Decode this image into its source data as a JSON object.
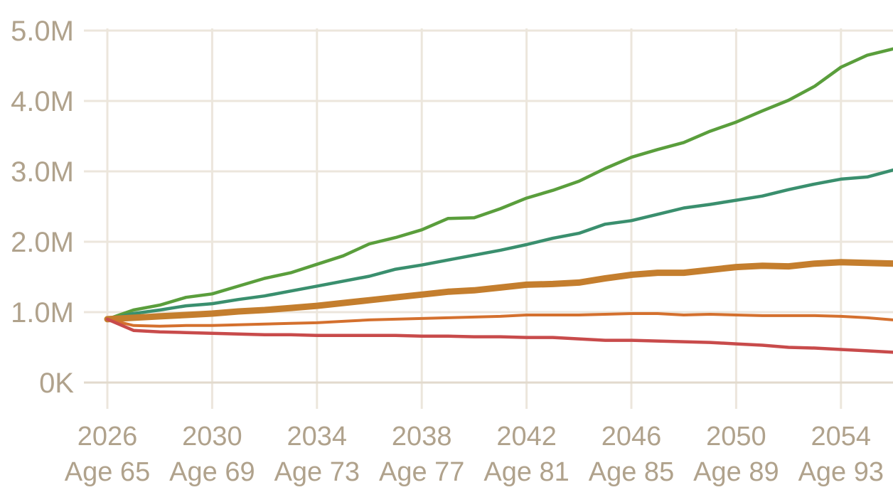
{
  "chart_data": {
    "type": "line",
    "title": "",
    "xlabel": "",
    "ylabel": "",
    "x": [
      2026,
      2027,
      2028,
      2029,
      2030,
      2031,
      2032,
      2033,
      2034,
      2035,
      2036,
      2037,
      2038,
      2039,
      2040,
      2041,
      2042,
      2043,
      2044,
      2045,
      2046,
      2047,
      2048,
      2049,
      2050,
      2051,
      2052,
      2053,
      2054,
      2055,
      2056
    ],
    "xlim": [
      2026,
      2056
    ],
    "ylim": [
      0,
      5000000
    ],
    "grid": true,
    "legend": "none",
    "y_ticks": [
      {
        "value": 0,
        "label": "0K"
      },
      {
        "value": 1000000,
        "label": "1.0M"
      },
      {
        "value": 2000000,
        "label": "2.0M"
      },
      {
        "value": 3000000,
        "label": "3.0M"
      },
      {
        "value": 4000000,
        "label": "4.0M"
      },
      {
        "value": 5000000,
        "label": "5.0M"
      }
    ],
    "x_ticks": [
      {
        "value": 2026,
        "year": "2026",
        "age": "Age 65"
      },
      {
        "value": 2030,
        "year": "2030",
        "age": "Age 69"
      },
      {
        "value": 2034,
        "year": "2034",
        "age": "Age 73"
      },
      {
        "value": 2038,
        "year": "2038",
        "age": "Age 77"
      },
      {
        "value": 2042,
        "year": "2042",
        "age": "Age 81"
      },
      {
        "value": 2046,
        "year": "2046",
        "age": "Age 85"
      },
      {
        "value": 2050,
        "year": "2050",
        "age": "Age 89"
      },
      {
        "value": 2054,
        "year": "2054",
        "age": "Age 93"
      }
    ],
    "series": [
      {
        "color": "#5a9e3c",
        "width": 4.5,
        "values": [
          900000,
          1030000,
          1100000,
          1210000,
          1260000,
          1370000,
          1480000,
          1560000,
          1680000,
          1800000,
          1970000,
          2060000,
          2170000,
          2330000,
          2340000,
          2470000,
          2620000,
          2730000,
          2860000,
          3040000,
          3200000,
          3310000,
          3410000,
          3570000,
          3700000,
          3860000,
          4010000,
          4210000,
          4480000,
          4650000,
          4740000
        ]
      },
      {
        "color": "#3a8f6e",
        "width": 4.5,
        "values": [
          900000,
          980000,
          1030000,
          1090000,
          1120000,
          1180000,
          1230000,
          1300000,
          1370000,
          1440000,
          1510000,
          1610000,
          1670000,
          1740000,
          1810000,
          1880000,
          1960000,
          2050000,
          2120000,
          2250000,
          2300000,
          2390000,
          2480000,
          2530000,
          2590000,
          2650000,
          2740000,
          2820000,
          2890000,
          2920000,
          3020000
        ]
      },
      {
        "color": "#c47e2e",
        "width": 9,
        "values": [
          900000,
          920000,
          940000,
          960000,
          980000,
          1010000,
          1030000,
          1060000,
          1090000,
          1130000,
          1170000,
          1210000,
          1250000,
          1290000,
          1310000,
          1350000,
          1390000,
          1400000,
          1420000,
          1480000,
          1530000,
          1560000,
          1560000,
          1600000,
          1640000,
          1660000,
          1650000,
          1690000,
          1710000,
          1700000,
          1690000
        ]
      },
      {
        "color": "#d4702e",
        "width": 4,
        "values": [
          900000,
          810000,
          800000,
          810000,
          810000,
          820000,
          830000,
          840000,
          850000,
          870000,
          890000,
          900000,
          910000,
          920000,
          930000,
          940000,
          960000,
          960000,
          960000,
          970000,
          980000,
          980000,
          960000,
          970000,
          960000,
          950000,
          950000,
          950000,
          940000,
          920000,
          890000
        ]
      },
      {
        "color": "#c84b4b",
        "width": 4.5,
        "values": [
          900000,
          740000,
          720000,
          710000,
          700000,
          690000,
          680000,
          680000,
          670000,
          670000,
          670000,
          670000,
          660000,
          660000,
          650000,
          650000,
          640000,
          640000,
          620000,
          600000,
          600000,
          590000,
          580000,
          570000,
          550000,
          530000,
          500000,
          490000,
          470000,
          450000,
          430000
        ]
      }
    ]
  }
}
